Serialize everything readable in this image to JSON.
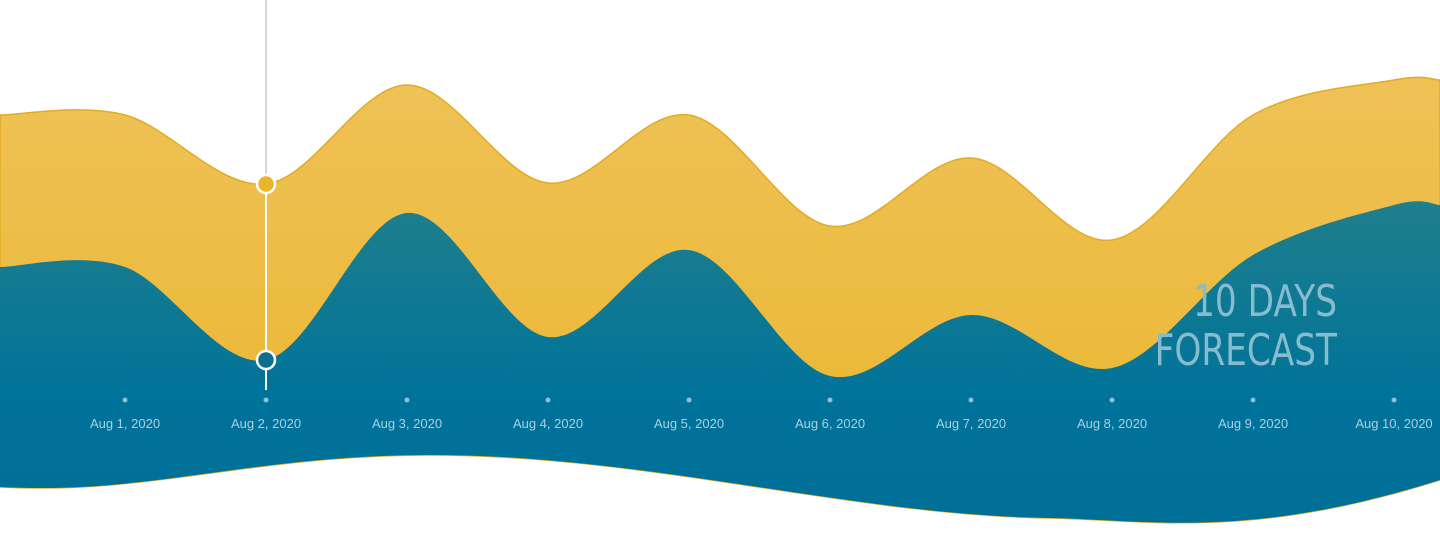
{
  "chart_data": {
    "type": "area",
    "annotation": [
      "10 DAYS",
      "FORECAST"
    ],
    "categories": [
      "Aug 1, 2020",
      "Aug 2, 2020",
      "Aug 3, 2020",
      "Aug 4, 2020",
      "Aug 5, 2020",
      "Aug 6, 2020",
      "Aug 7, 2020",
      "Aug 8, 2020",
      "Aug 9, 2020",
      "Aug 10, 2020"
    ],
    "series": [
      {
        "color": "#ebb834",
        "values": [
          71.25,
          54,
          78.75,
          54.25,
          71.25,
          43.5,
          60.5,
          40,
          71.25,
          80
        ]
      },
      {
        "color": "#00739a",
        "values": [
          33.25,
          10,
          46.75,
          15.75,
          37.5,
          6,
          21.25,
          8,
          36.25,
          48.75
        ]
      }
    ],
    "ylim": [
      0,
      100
    ],
    "highlight_index": 1
  }
}
